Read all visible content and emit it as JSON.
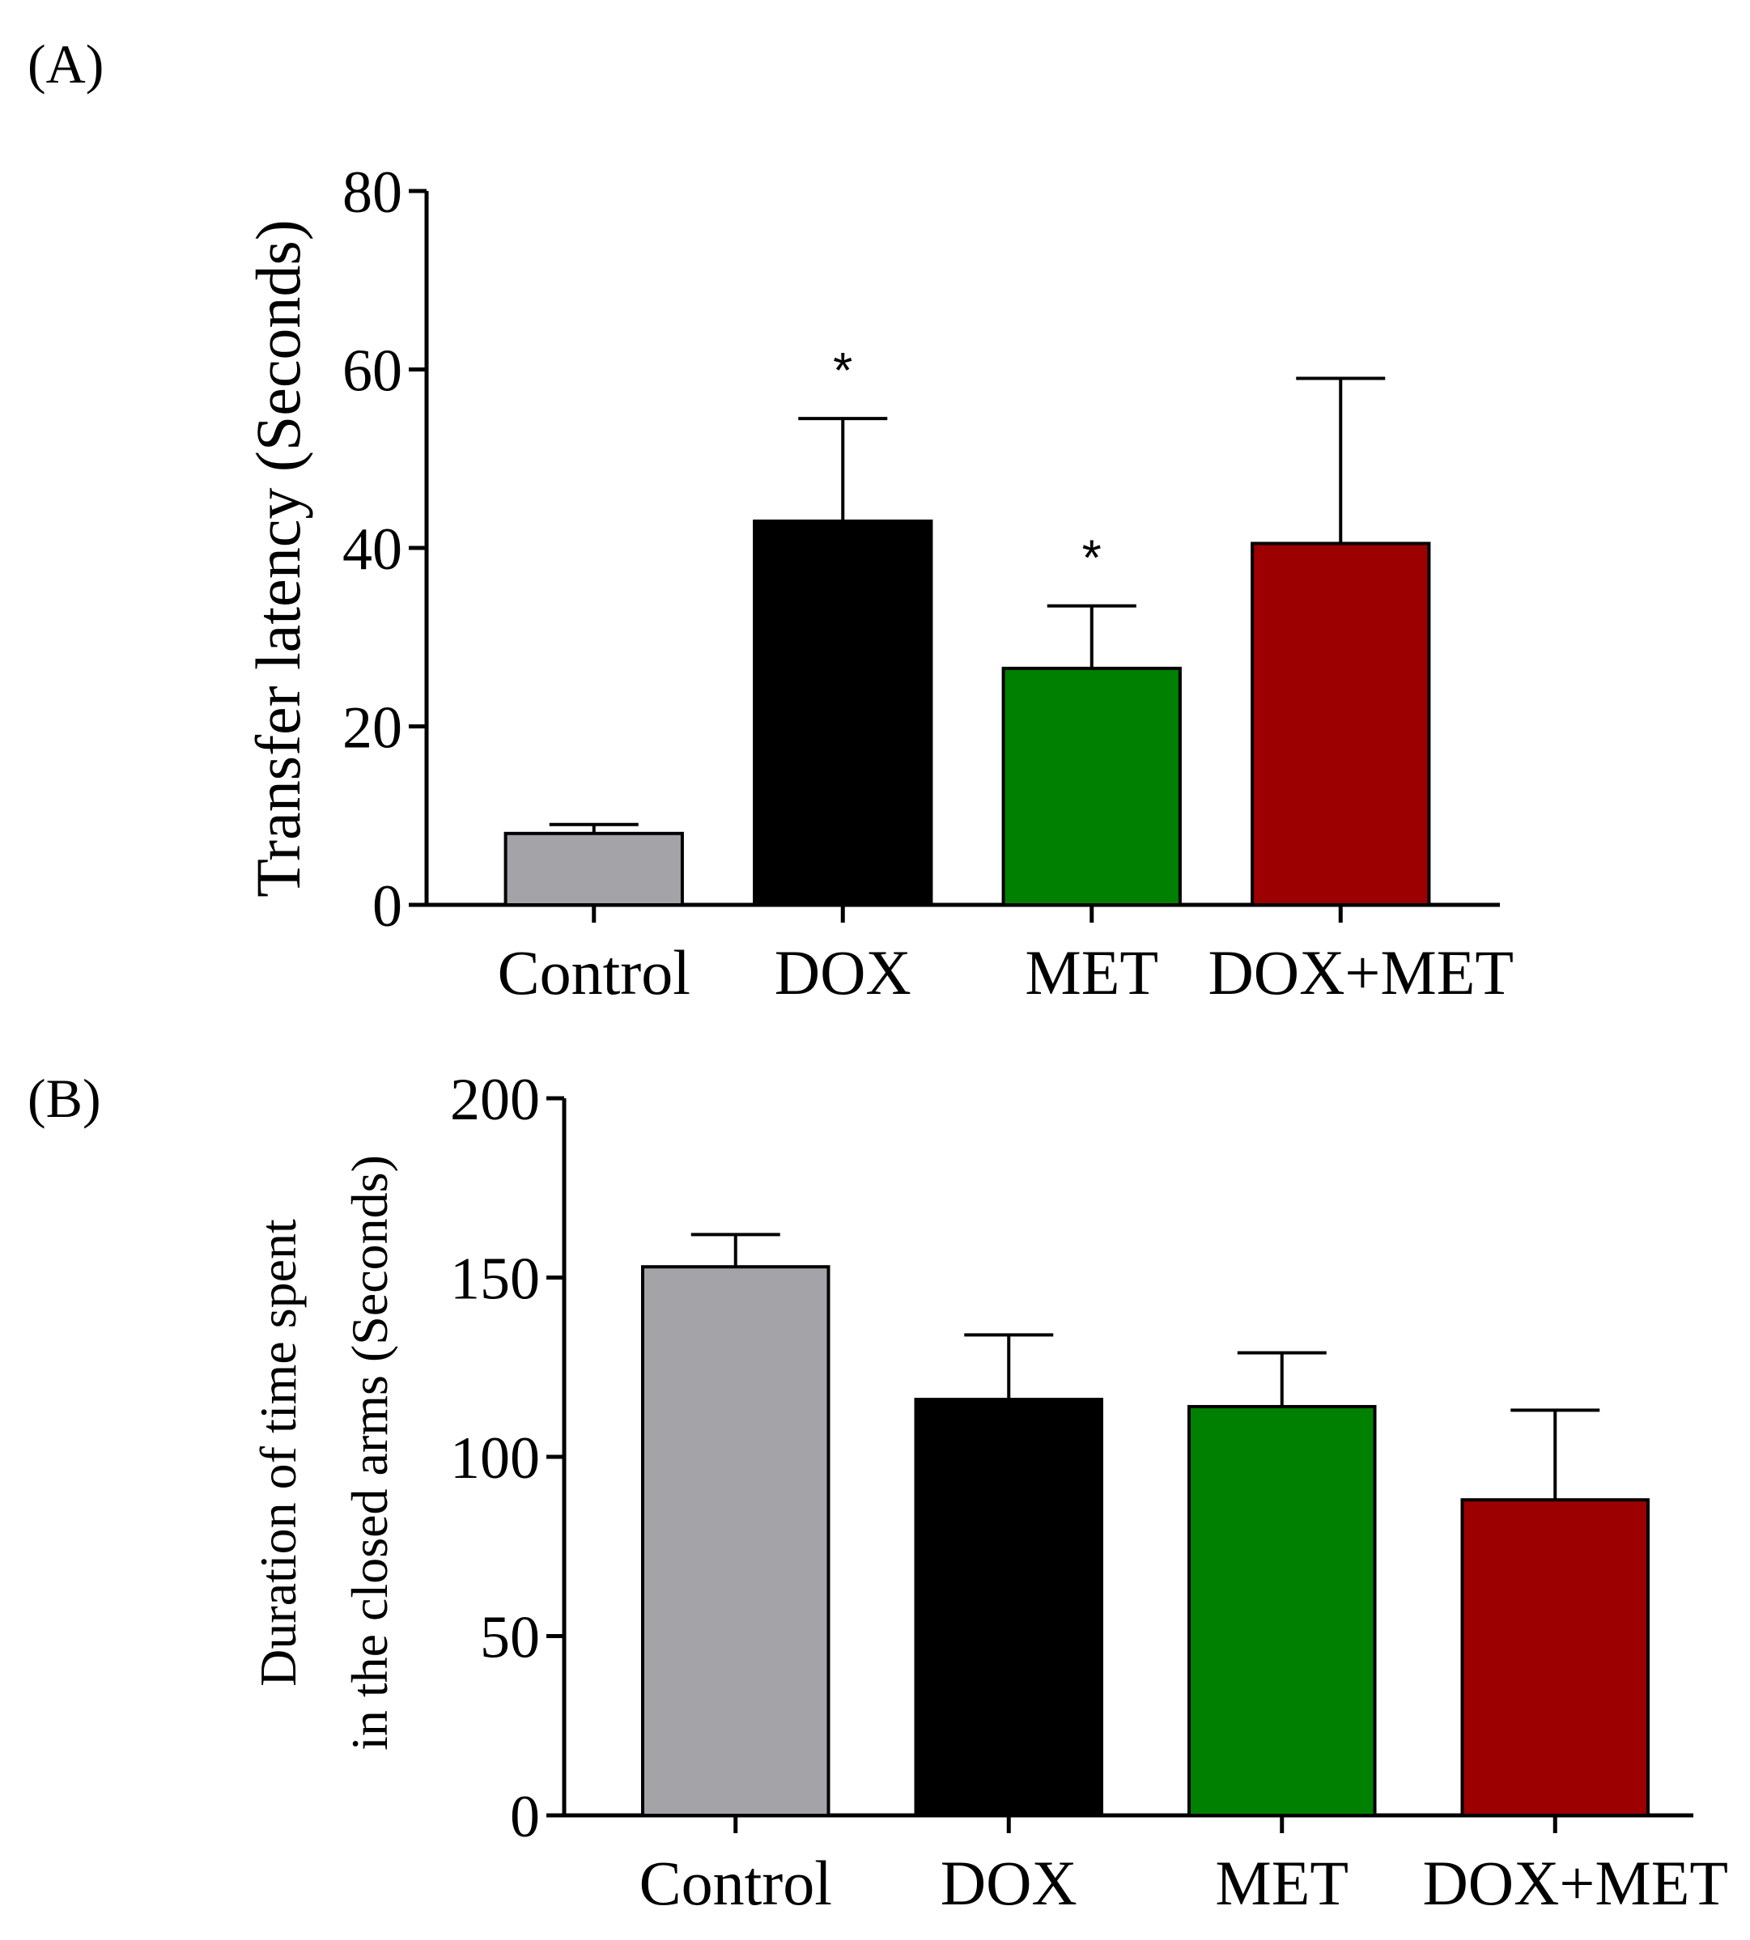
{
  "panels": [
    {
      "label": "(A)",
      "ylabel": "Transfer latency (Seconds)"
    },
    {
      "label": "(B)",
      "ylabel_line1": "Duration of time spent",
      "ylabel_line2": "in the closed arms (Seconds)"
    }
  ],
  "chart_data": [
    {
      "type": "bar",
      "panel": "(A)",
      "categories": [
        "Control",
        "DOX",
        "MET",
        "DOX+MET"
      ],
      "values": [
        8,
        43,
        26.5,
        40.5
      ],
      "error_upper": [
        9,
        54.5,
        33.5,
        59
      ],
      "significance": [
        "",
        "*",
        "*",
        ""
      ],
      "colors": [
        "#a3a3a8",
        "#000000",
        "#008000",
        "#9c0000"
      ],
      "xlabel": "",
      "ylabel": "Transfer latency (Seconds)",
      "ylim": [
        0,
        80
      ],
      "yticks": [
        0,
        20,
        40,
        60,
        80
      ],
      "grid": false,
      "legend": "none"
    },
    {
      "type": "bar",
      "panel": "(B)",
      "categories": [
        "Control",
        "DOX",
        "MET",
        "DOX+MET"
      ],
      "values": [
        153,
        116,
        114,
        88
      ],
      "error_upper": [
        162,
        134,
        129,
        113
      ],
      "significance": [
        "",
        "",
        "",
        ""
      ],
      "colors": [
        "#a3a3a8",
        "#000000",
        "#008000",
        "#9c0000"
      ],
      "xlabel": "",
      "ylabel": "Duration of time spent in the closed arms (Seconds)",
      "ylim": [
        0,
        200
      ],
      "yticks": [
        0,
        50,
        100,
        150,
        200
      ],
      "grid": false,
      "legend": "none"
    }
  ]
}
